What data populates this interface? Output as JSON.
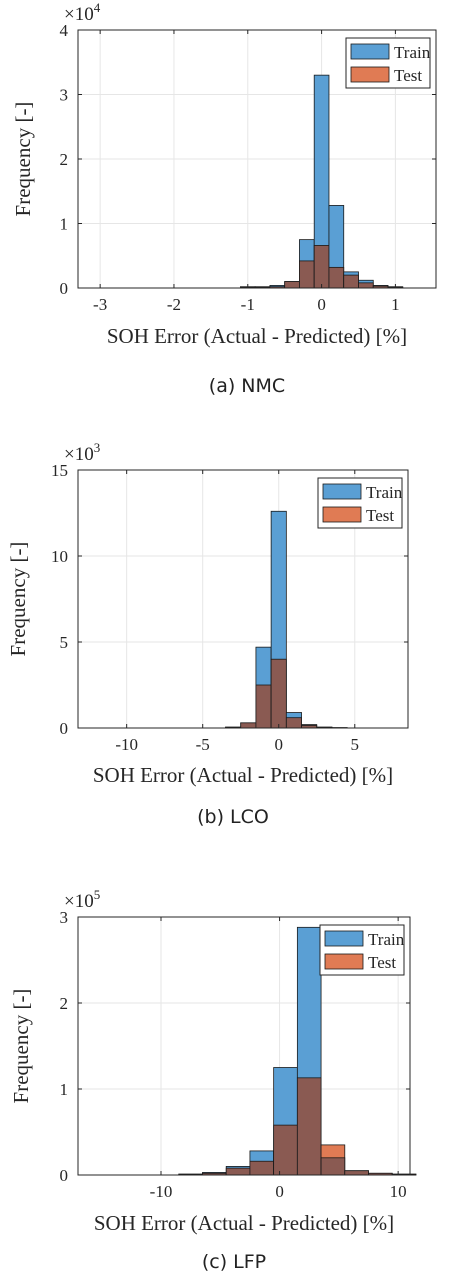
{
  "colors": {
    "train": "#5a9fd4",
    "test": "#e07b54",
    "overlap": "#8a5a52",
    "edge": "#1a1a1a",
    "grid": "#e6e6e6"
  },
  "chart_data": [
    {
      "type": "bar",
      "caption": "(a) NMC",
      "xlabel": "SOH Error (Actual - Predicted) [%]",
      "ylabel": "Frequency [-]",
      "multiplier": "×10",
      "multiplier_exp": "4",
      "xlim": [
        -3.3,
        1.55
      ],
      "ylim": [
        0,
        4
      ],
      "xticks": [
        -3,
        -2,
        -1,
        0,
        1
      ],
      "xtick_labels": [
        "-3",
        "-2",
        "-1",
        "0",
        "1"
      ],
      "yticks": [
        0,
        1,
        2,
        3,
        4
      ],
      "ytick_labels": [
        "0",
        "1",
        "2",
        "3",
        "4"
      ],
      "grid": true,
      "legend_position": "top-right",
      "bin_edges": [
        -3.1,
        -2.9,
        -2.7,
        -2.5,
        -2.3,
        -2.1,
        -1.9,
        -1.7,
        -1.5,
        -1.3,
        -1.1,
        -0.9,
        -0.7,
        -0.5,
        -0.3,
        -0.1,
        0.1,
        0.3,
        0.5,
        0.7,
        0.9,
        1.1,
        1.3,
        1.5
      ],
      "series": [
        {
          "name": "Train",
          "values": [
            0,
            0,
            0,
            0,
            0,
            0,
            0,
            0,
            0,
            0,
            0.02,
            0.02,
            0.04,
            0.1,
            0.75,
            3.3,
            1.28,
            0.25,
            0.12,
            0.04,
            0.02,
            0,
            0
          ]
        },
        {
          "name": "Test",
          "values": [
            0,
            0,
            0,
            0,
            0,
            0,
            0,
            0,
            0,
            0,
            0.01,
            0.01,
            0.02,
            0.1,
            0.42,
            0.66,
            0.32,
            0.2,
            0.08,
            0.03,
            0.01,
            0,
            0
          ]
        }
      ]
    },
    {
      "type": "bar",
      "caption": "(b) LCO",
      "xlabel": "SOH Error (Actual - Predicted) [%]",
      "ylabel": "Frequency [-]",
      "multiplier": "×10",
      "multiplier_exp": "3",
      "xlim": [
        -13.2,
        8.5
      ],
      "ylim": [
        0,
        15
      ],
      "xticks": [
        -10,
        -5,
        0,
        5
      ],
      "xtick_labels": [
        "-10",
        "-5",
        "0",
        "5"
      ],
      "yticks": [
        0,
        5,
        10,
        15
      ],
      "ytick_labels": [
        "0",
        "5",
        "10",
        "15"
      ],
      "grid": true,
      "legend_position": "top-right",
      "bin_edges": [
        -12.5,
        -11.5,
        -10.5,
        -9.5,
        -8.5,
        -7.5,
        -6.5,
        -5.5,
        -4.5,
        -3.5,
        -2.5,
        -1.5,
        -0.5,
        0.5,
        1.5,
        2.5,
        3.5,
        4.5,
        5.5,
        6.5,
        7.5
      ],
      "series": [
        {
          "name": "Train",
          "values": [
            0,
            0,
            0,
            0,
            0,
            0,
            0,
            0,
            0,
            0.05,
            0.3,
            4.7,
            12.6,
            0.9,
            0.2,
            0.05,
            0.02,
            0,
            0,
            0
          ]
        },
        {
          "name": "Test",
          "values": [
            0,
            0,
            0,
            0,
            0,
            0,
            0,
            0,
            0,
            0.05,
            0.3,
            2.5,
            4.0,
            0.6,
            0.15,
            0.05,
            0.02,
            0,
            0,
            0
          ]
        }
      ]
    },
    {
      "type": "bar",
      "caption": "(c) LFP",
      "xlabel": "SOH Error (Actual - Predicted) [%]",
      "ylabel": "Frequency [-]",
      "multiplier": "×10",
      "multiplier_exp": "5",
      "xlim": [
        -17,
        11
      ],
      "ylim": [
        0,
        3
      ],
      "xticks": [
        -10,
        0,
        10
      ],
      "xtick_labels": [
        "-10",
        "0",
        "10"
      ],
      "yticks": [
        0,
        1,
        2,
        3
      ],
      "ytick_labels": [
        "0",
        "1",
        "2",
        "3"
      ],
      "grid": true,
      "legend_position": "top-right",
      "bin_edges": [
        -16.5,
        -14.5,
        -12.5,
        -10.5,
        -8.5,
        -6.5,
        -4.5,
        -2.5,
        -0.5,
        1.5,
        3.5,
        5.5,
        7.5,
        9.5,
        11.5
      ],
      "series": [
        {
          "name": "Train",
          "values": [
            0,
            0,
            0,
            0,
            0.01,
            0.03,
            0.1,
            0.28,
            1.25,
            2.88,
            0.2,
            0.05,
            0.02,
            0.01
          ]
        },
        {
          "name": "Test",
          "values": [
            0,
            0,
            0,
            0,
            0.01,
            0.02,
            0.08,
            0.16,
            0.58,
            1.13,
            0.35,
            0.05,
            0.02,
            0.01
          ]
        }
      ]
    }
  ]
}
